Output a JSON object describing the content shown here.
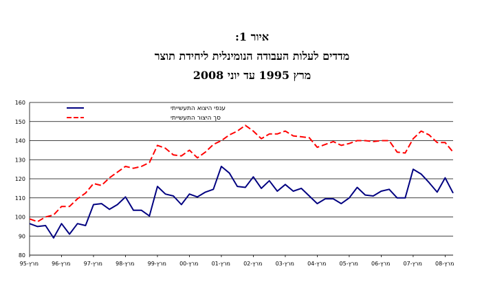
{
  "title": {
    "line1": "איור 1:",
    "line2": "מדדים לעלות העבודה הנומינלית ליחידת תוצר",
    "line3": "מרץ 1995 עד יוני 2008"
  },
  "chart_data": {
    "type": "line",
    "title": "מדדים לעלות העבודה הנומינלית ליחידת תוצר",
    "subtitle": "מרץ 1995 עד יוני 2008",
    "ylim": [
      80,
      160
    ],
    "yticks": [
      80,
      90,
      100,
      110,
      120,
      130,
      140,
      150,
      160
    ],
    "x_tick_labels": [
      "מרץ-95",
      "מרץ-96",
      "מרץ-97",
      "מרץ-98",
      "מרץ-99",
      "מרץ-00",
      "מרץ-01",
      "מרץ-02",
      "מרץ-03",
      "מרץ-04",
      "מרץ-05",
      "מרץ-06",
      "מרץ-07",
      "מרץ-08"
    ],
    "x_quarters": [
      "1995Q1",
      "1995Q2",
      "1995Q3",
      "1995Q4",
      "1996Q1",
      "1996Q2",
      "1996Q3",
      "1996Q4",
      "1997Q1",
      "1997Q2",
      "1997Q3",
      "1997Q4",
      "1998Q1",
      "1998Q2",
      "1998Q3",
      "1998Q4",
      "1999Q1",
      "1999Q2",
      "1999Q3",
      "1999Q4",
      "2000Q1",
      "2000Q2",
      "2000Q3",
      "2000Q4",
      "2001Q1",
      "2001Q2",
      "2001Q3",
      "2001Q4",
      "2002Q1",
      "2002Q2",
      "2002Q3",
      "2002Q4",
      "2003Q1",
      "2003Q2",
      "2003Q3",
      "2003Q4",
      "2004Q1",
      "2004Q2",
      "2004Q3",
      "2004Q4",
      "2005Q1",
      "2005Q2",
      "2005Q3",
      "2005Q4",
      "2006Q1",
      "2006Q2",
      "2006Q3",
      "2006Q4",
      "2007Q1",
      "2007Q2",
      "2007Q3",
      "2007Q4",
      "2008Q1",
      "2008Q2"
    ],
    "grid": true,
    "legend_position": "top-left",
    "series": [
      {
        "name": "ענפי היצוא התעשייתי",
        "color": "#000080",
        "style": "solid",
        "values": [
          96.5,
          95,
          95.5,
          89,
          96.5,
          91,
          96.5,
          95.5,
          106.5,
          107,
          104,
          106.5,
          110.5,
          103.5,
          103.5,
          100.5,
          116,
          112,
          111,
          106.5,
          112,
          110.5,
          113,
          114.5,
          126.5,
          123,
          116,
          115.5,
          121,
          115,
          119,
          113.5,
          117,
          113.5,
          115,
          111,
          107,
          109.5,
          109.5,
          107,
          110,
          115.5,
          111.5,
          111,
          113.5,
          114.5,
          110,
          110,
          125,
          122.5,
          118,
          113,
          120.5,
          112.5
        ]
      },
      {
        "name": "סך היצור התעשייתי",
        "color": "#ff0000",
        "style": "dashed",
        "values": [
          99,
          97.5,
          100,
          101,
          105.5,
          105.5,
          109.5,
          112.5,
          117.5,
          116.5,
          120.5,
          123.5,
          126.5,
          125.5,
          126.5,
          128.5,
          137.5,
          136,
          132.5,
          132,
          135,
          131,
          134,
          138,
          140,
          143,
          145,
          148,
          145,
          141,
          143.5,
          143.5,
          145,
          142.5,
          142,
          141.5,
          136.5,
          138,
          139.5,
          137.5,
          138.5,
          140,
          140,
          139.5,
          140,
          140,
          134,
          133.5,
          141,
          145,
          143,
          139,
          139,
          134
        ]
      }
    ]
  }
}
